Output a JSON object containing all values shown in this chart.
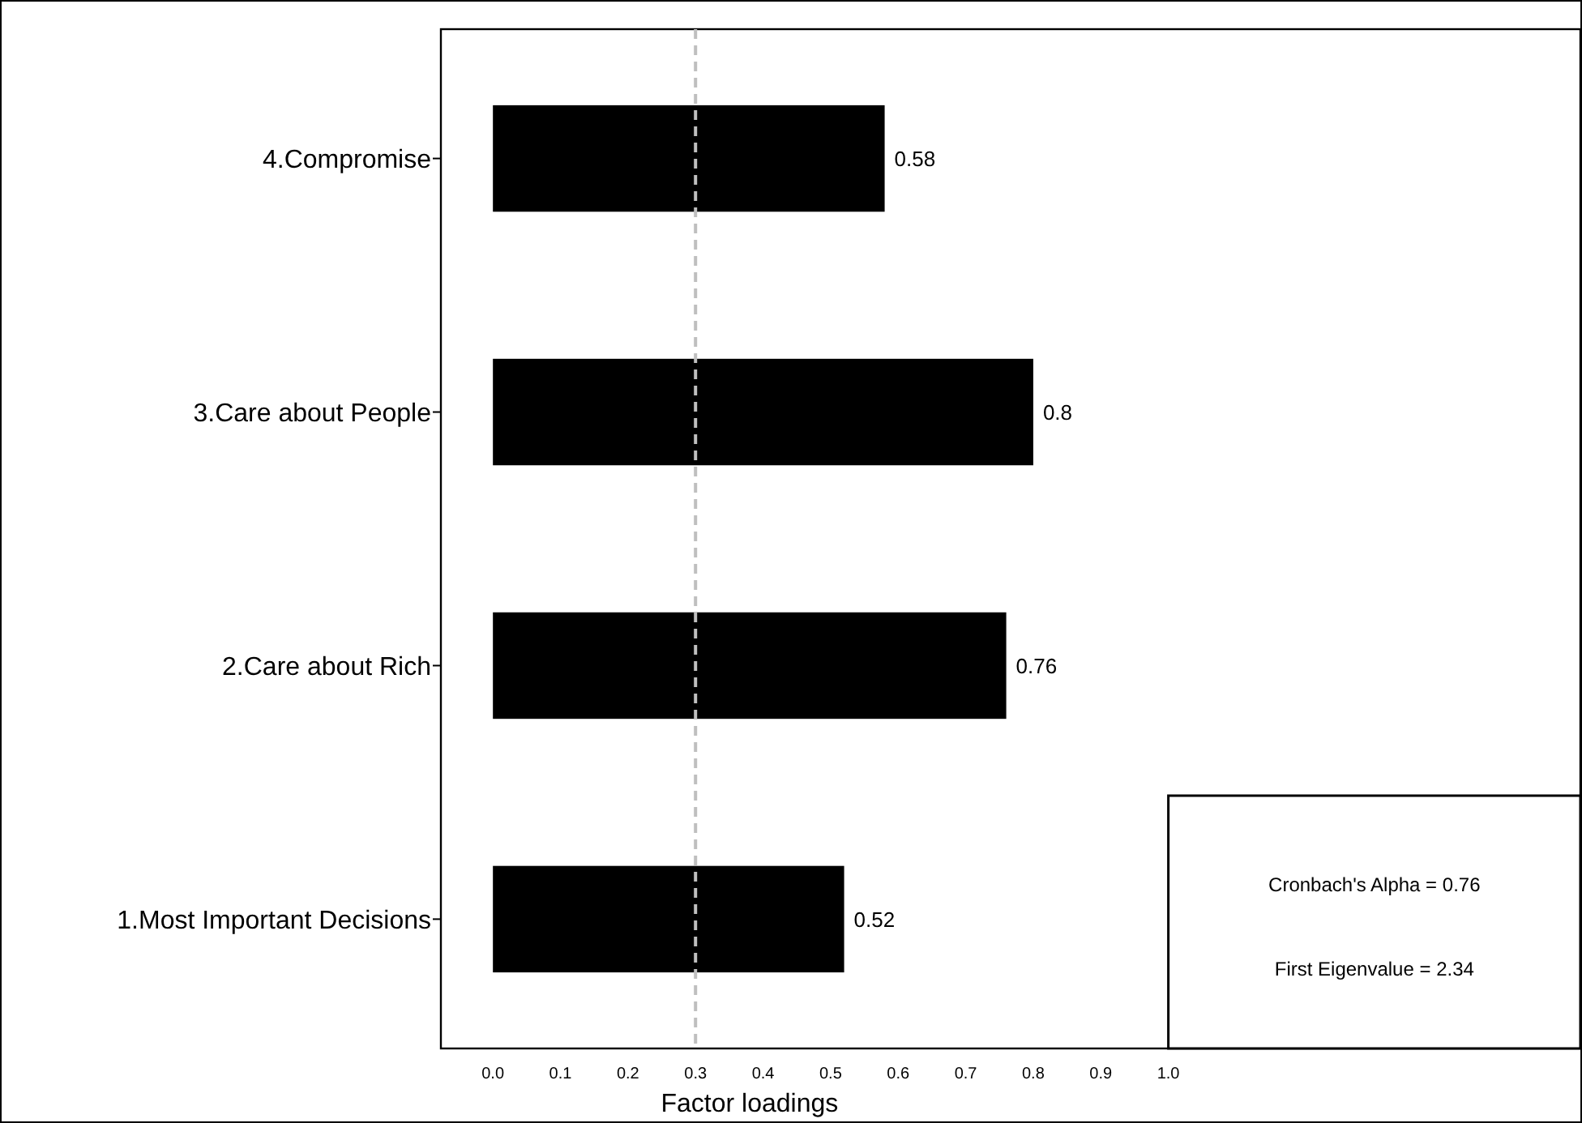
{
  "chart_data": {
    "type": "bar",
    "orientation": "horizontal",
    "xlabel": "Factor loadings",
    "categories": [
      "4.Compromise",
      "3.Care about People",
      "2.Care about Rich",
      "1.Most Important Decisions"
    ],
    "values": [
      0.58,
      0.8,
      0.76,
      0.52
    ],
    "color": "#000000",
    "data_labels": true,
    "xlim": [
      -0.077,
      1.61
    ],
    "xticks": [
      {
        "value": 0,
        "label": "0.0"
      },
      {
        "value": 0.1,
        "label": "0.1"
      },
      {
        "value": 0.2,
        "label": "0.2"
      },
      {
        "value": 0.3,
        "label": "0.3"
      },
      {
        "value": 0.4,
        "label": "0.4"
      },
      {
        "value": 0.5,
        "label": "0.5"
      },
      {
        "value": 0.6,
        "label": "0.6"
      },
      {
        "value": 0.7,
        "label": "0.7"
      },
      {
        "value": 0.8,
        "label": "0.8"
      },
      {
        "value": 0.9,
        "label": "0.9"
      },
      {
        "value": 1,
        "label": "1.0"
      }
    ],
    "ref_lines": [
      {
        "axis": "x",
        "value": 0.3,
        "color": "#bfbfbf",
        "line_style": "dashed"
      }
    ],
    "annotations": [
      "Cronbach's Alpha = 0.76",
      "First Eigenvalue = 2.34"
    ],
    "grid": false
  }
}
